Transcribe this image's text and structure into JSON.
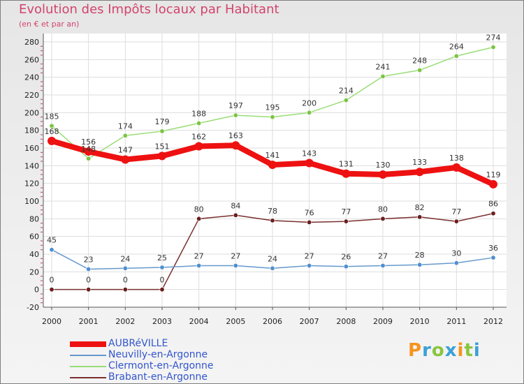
{
  "header": {
    "title": "Evolution des Impôts locaux par Habitant",
    "subtitle": "(en € et par an)"
  },
  "logo": {
    "text": "Proxiti",
    "letters": [
      {
        "ch": "P",
        "color": "#f7931e"
      },
      {
        "ch": "r",
        "color": "#3aa0d8"
      },
      {
        "ch": "o",
        "color": "#8bc53f"
      },
      {
        "ch": "x",
        "color": "#3aa0d8"
      },
      {
        "ch": "i",
        "color": "#f7931e"
      },
      {
        "ch": "t",
        "color": "#8bc53f"
      },
      {
        "ch": "i",
        "color": "#3aa0d8"
      }
    ]
  },
  "chart_data": {
    "type": "line",
    "title": "Evolution des Impôts locaux par Habitant",
    "subtitle": "(en € et par an)",
    "x": [
      "2000",
      "2001",
      "2002",
      "2003",
      "2004",
      "2005",
      "2006",
      "2007",
      "2008",
      "2009",
      "2010",
      "2011",
      "2012"
    ],
    "ylim": [
      -20,
      280
    ],
    "yticks": [
      -20,
      0,
      20,
      40,
      60,
      80,
      100,
      120,
      140,
      160,
      180,
      200,
      220,
      240,
      260,
      280
    ],
    "grid": true,
    "legend": "bottom-left",
    "series": [
      {
        "name": "AUBRéVILLE",
        "color": "#ee1111",
        "marker": "#ee1111",
        "width": 8,
        "values": [
          168,
          156,
          147,
          151,
          162,
          163,
          141,
          143,
          131,
          130,
          133,
          138,
          119
        ],
        "labels": [
          "168",
          "156",
          "147",
          "151",
          "162",
          "163",
          "141",
          "143",
          "131",
          "130",
          "133",
          "138",
          "119"
        ]
      },
      {
        "name": "Neuvilly-en-Argonne",
        "color": "#6699cc",
        "marker": "#4f8fd0",
        "width": 1.5,
        "values": [
          45,
          23,
          24,
          25,
          27,
          27,
          24,
          27,
          26,
          27,
          28,
          30,
          36
        ],
        "labels": [
          "45",
          "23",
          "24",
          "25",
          "27",
          "27",
          "24",
          "27",
          "26",
          "27",
          "28",
          "30",
          "36"
        ]
      },
      {
        "name": "Clermont-en-Argonne",
        "color": "#99dd77",
        "marker": "#7cc442",
        "width": 1.5,
        "values": [
          185,
          148,
          174,
          179,
          188,
          197,
          195,
          200,
          214,
          241,
          248,
          264,
          274
        ],
        "labels": [
          "185",
          "148",
          "174",
          "179",
          "188",
          "197",
          "195",
          "200",
          "214",
          "241",
          "248",
          "264",
          "274"
        ]
      },
      {
        "name": "Brabant-en-Argonne",
        "color": "#7a2e2e",
        "marker": "#6b1e1e",
        "width": 1.5,
        "values": [
          0,
          0,
          0,
          0,
          80,
          84,
          78,
          76,
          77,
          80,
          82,
          77,
          86
        ],
        "labels": [
          "0",
          "0",
          "0",
          "0",
          "80",
          "84",
          "78",
          "76",
          "77",
          "80",
          "82",
          "77",
          "86"
        ]
      }
    ]
  }
}
